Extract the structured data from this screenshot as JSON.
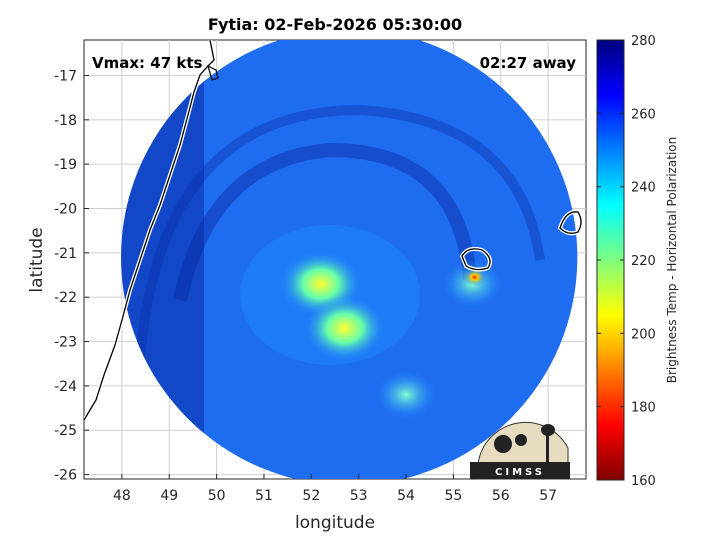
{
  "chart_data": {
    "type": "heatmap",
    "title": "Fytia: 02-Feb-2026 05:30:00",
    "xlabel": "longitude",
    "ylabel": "latitude",
    "xlim": [
      47.2,
      57.8
    ],
    "ylim": [
      -26.1,
      -16.2
    ],
    "x_ticks": [
      48,
      49,
      50,
      51,
      52,
      53,
      54,
      55,
      56,
      57
    ],
    "y_ticks": [
      -17,
      -18,
      -19,
      -20,
      -21,
      -22,
      -23,
      -24,
      -25,
      -26
    ],
    "grid": true,
    "annotations": {
      "vmax": "Vmax: 47 kts",
      "time_away": "02:27 away"
    },
    "colorbar": {
      "label": "Brightness Temp - Horizontal Polarization",
      "min": 160,
      "max": 280,
      "ticks": [
        280,
        260,
        240,
        220,
        200,
        180,
        160
      ],
      "colormap": "jet"
    },
    "swath": {
      "center": [
        52.8,
        -21.1
      ],
      "radius_deg_lon": 5.0,
      "radius_deg_lat": 4.95,
      "background_tb": 265
    },
    "features": [
      {
        "lon": 52.2,
        "lat": -21.7,
        "tb": 225
      },
      {
        "lon": 52.7,
        "lat": -22.7,
        "tb": 228
      },
      {
        "lon": 55.4,
        "lat": -21.7,
        "tb": 232
      },
      {
        "lon": 55.45,
        "lat": -21.55,
        "tb": 185
      },
      {
        "lon": 54.0,
        "lat": -24.2,
        "tb": 238
      }
    ],
    "logo": "CIMSS"
  }
}
